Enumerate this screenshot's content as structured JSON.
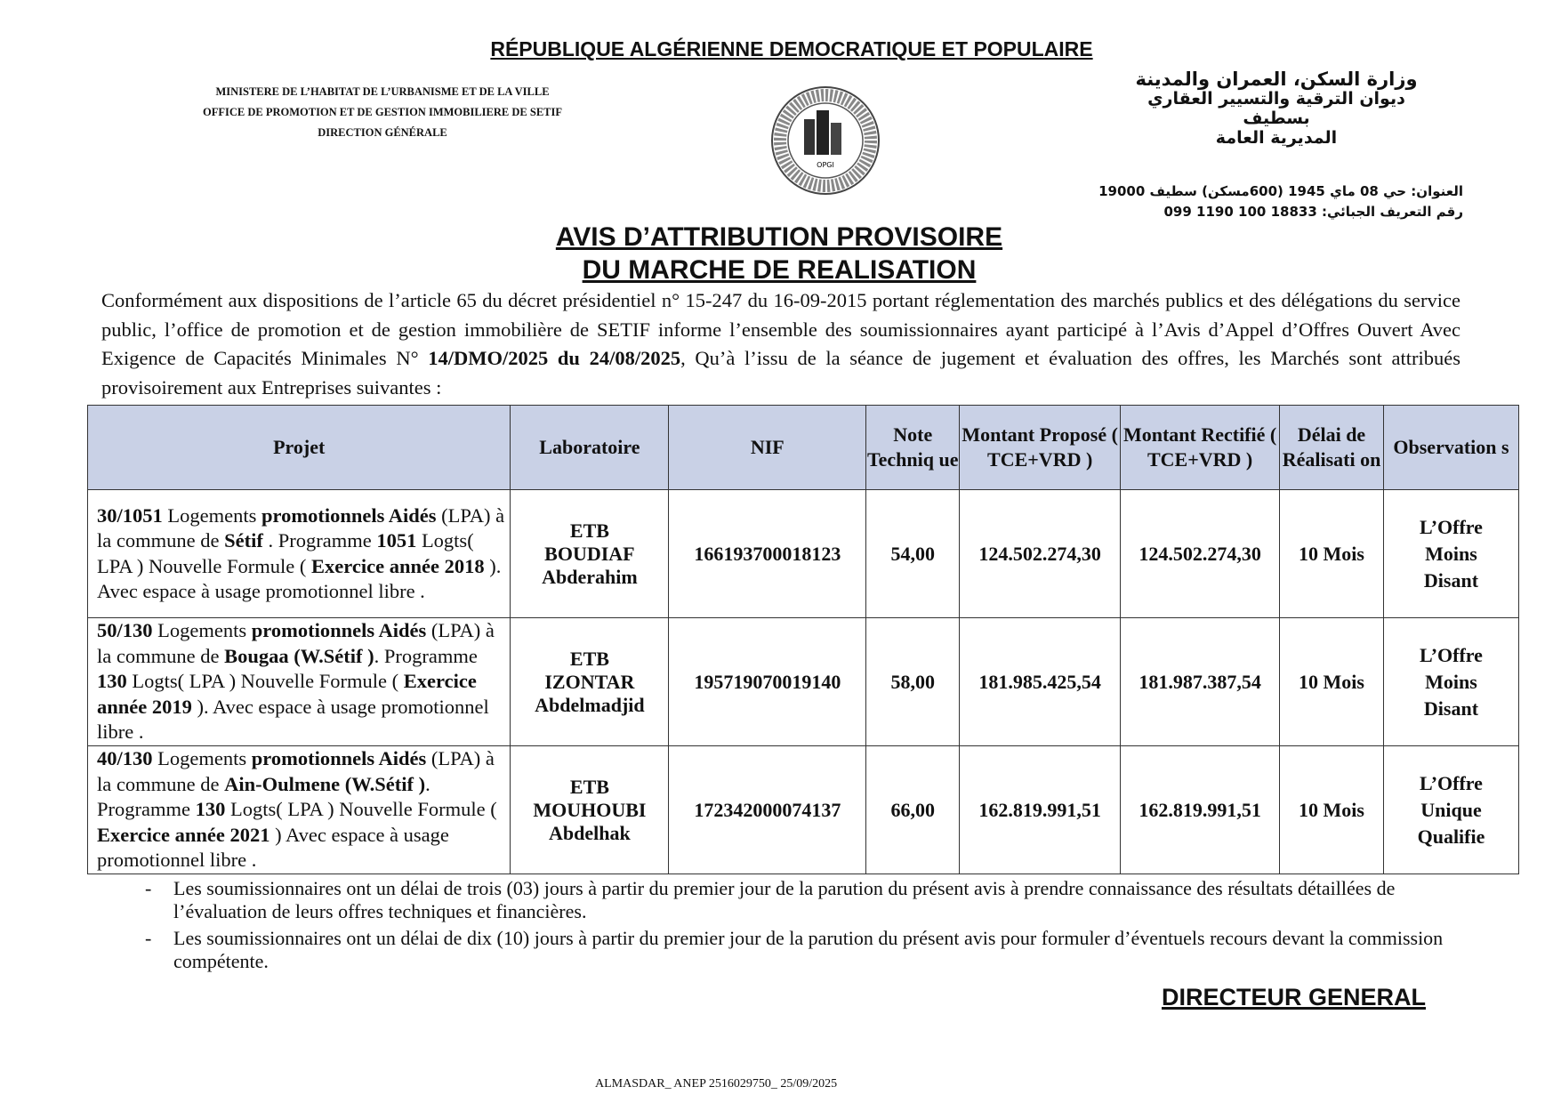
{
  "header": {
    "republic": "RÉPUBLIQUE ALGÉRIENNE DEMOCRATIQUE ET POPULAIRE",
    "ministry_fr": [
      "MINISTERE DE L’HABITAT DE L’URBANISME ET DE LA VILLE",
      "OFFICE DE PROMOTION ET DE GESTION IMMOBILIERE DE SETIF",
      "DIRECTION GÉNÉRALE"
    ],
    "ministry_ar": [
      "وزارة السكن، العمران والمدينة",
      "ديوان الترقية والتسيير العقاري بسطيف",
      "المديرية العامة"
    ],
    "address_ar": "العنوان: حي 08 ماي 1945 (600مسكن) سطيف 19000",
    "nif_ar": "رقم التعريف الجبائي: 18833 100 1190 099",
    "logo_text": "OPGI"
  },
  "title": [
    "AVIS  D’ATTRIBUTION  PROVISOIRE",
    "DU  MARCHE   DE  REALISATION"
  ],
  "intro": "Conformément aux dispositions de l’article 65 du décret présidentiel n° 15-247 du 16-09-2015 portant réglementation des marchés publics et des délégations du service public, l’office de promotion et de gestion immobilière de SETIF informe l’ensemble des soumissionnaires ayant participé à l’Avis d’Appel d’Offres Ouvert Avec Exigence de Capacités Minimales N°",
  "intro_ref": "14/DMO/2025 du 24/08/2025",
  "intro_end": ", Qu’à l’issu de la séance de jugement et évaluation des offres, les Marchés sont  attribués  provisoirement aux Entreprises  suivantes  :",
  "table": {
    "headers": [
      "Projet",
      "Laboratoire",
      "NIF",
      "Note Techniq ue",
      "Montant Proposé ( TCE+VRD )",
      "Montant Rectifié ( TCE+VRD )",
      "Délai de Réalisati on",
      "Observation s"
    ],
    "rows": [
      {
        "lot": "30/1051",
        "p1": " Logements ",
        "p2": "promotionnels Aidés",
        "p3": " (LPA) à la commune de ",
        "commune": "Sétif",
        "p4": " . Programme ",
        "prog": "1051",
        "p5": " Logts( LPA ) Nouvelle Formule ( ",
        "exercice": "Exercice année 2018",
        "p6": " ). Avec espace à usage promotionnel libre .",
        "lab": [
          "ETB",
          "BOUDIAF",
          "Abderahim"
        ],
        "nif": "166193700018123",
        "note": "54,00",
        "propose": "124.502.274,30",
        "rectifie": "124.502.274,30",
        "delai": "10 Mois",
        "obs": [
          "L’Offre",
          "Moins",
          "Disant"
        ]
      },
      {
        "lot": "50/130",
        "p1": " Logements ",
        "p2": "promotionnels Aidés",
        "p3": " (LPA) à la commune de ",
        "commune": "Bougaa (W.Sétif )",
        "p4": ". Programme ",
        "prog": "130",
        "p5": " Logts( LPA ) Nouvelle Formule ( ",
        "exercice": "Exercice  année 2019",
        "p6": " ). Avec espace à usage promotionnel libre .",
        "lab": [
          "ETB",
          "IZONTAR",
          "Abdelmadjid"
        ],
        "nif": "195719070019140",
        "note": "58,00",
        "propose": "181.985.425,54",
        "rectifie": "181.987.387,54",
        "delai": "10 Mois",
        "obs": [
          "L’Offre",
          "Moins",
          "Disant"
        ]
      },
      {
        "lot": "40/130",
        "p1": " Logements ",
        "p2": "promotionnels Aidés",
        "p3": " (LPA) à la commune de ",
        "commune": "Ain-Oulmene (W.Sétif )",
        "p4": ". Programme ",
        "prog": "130",
        "p5": " Logts( LPA ) Nouvelle Formule ( ",
        "exercice": "Exercice  année 2021",
        "p6": " ) Avec espace à usage promotionnel libre .",
        "lab": [
          "ETB",
          "MOUHOUBI",
          "Abdelhak"
        ],
        "nif": "172342000074137",
        "note": "66,00",
        "propose": "162.819.991,51",
        "rectifie": "162.819.991,51",
        "delai": "10 Mois",
        "obs": [
          "L’Offre",
          "Unique",
          "Qualifie"
        ]
      }
    ]
  },
  "notes": [
    "Les soumissionnaires ont un délai de trois (03) jours à partir du premier jour de la parution du présent avis à prendre connaissance des résultats détaillées de l’évaluation de leurs offres techniques et financières.",
    "Les soumissionnaires ont un délai de dix (10) jours à partir du premier jour de la parution du présent avis pour formuler d’éventuels recours devant la commission compétente."
  ],
  "signature": "DIRECTEUR GENERAL",
  "footer": "ALMASDAR_ ANEP 2516029750_ 25/09/2025"
}
